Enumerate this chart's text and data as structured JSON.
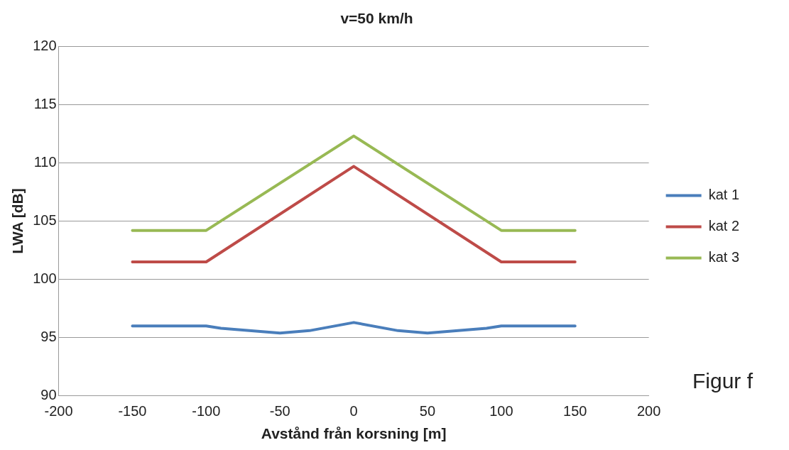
{
  "chart_data": {
    "type": "line",
    "title": "v=50 km/h",
    "xlabel": "Avstånd från korsning [m]",
    "ylabel": "LWA [dB]",
    "xlim": [
      -200,
      200
    ],
    "xticks": [
      -200,
      -150,
      -100,
      -50,
      0,
      50,
      100,
      150,
      200
    ],
    "ylim": [
      90,
      120
    ],
    "yticks": [
      90,
      95,
      100,
      105,
      110,
      115,
      120
    ],
    "grid": "y",
    "legend": "right",
    "marker": "none",
    "line_style": "solid",
    "series": [
      {
        "name": "kat 1",
        "color": "#4a7ebb",
        "x": [
          -150,
          -100,
          -90,
          -50,
          -30,
          0,
          30,
          50,
          90,
          100,
          150
        ],
        "values": [
          96,
          96,
          95.8,
          95.4,
          95.6,
          96.3,
          95.6,
          95.4,
          95.8,
          96,
          96
        ]
      },
      {
        "name": "kat 2",
        "color": "#be4b48",
        "x": [
          -150,
          -100,
          0,
          100,
          150
        ],
        "values": [
          101.5,
          101.5,
          109.7,
          101.5,
          101.5
        ]
      },
      {
        "name": "kat 3",
        "color": "#98b954",
        "x": [
          -150,
          -100,
          0,
          100,
          150
        ],
        "values": [
          104.2,
          104.2,
          112.3,
          104.2,
          104.2
        ]
      }
    ],
    "annotations": [
      "Figur f"
    ]
  }
}
